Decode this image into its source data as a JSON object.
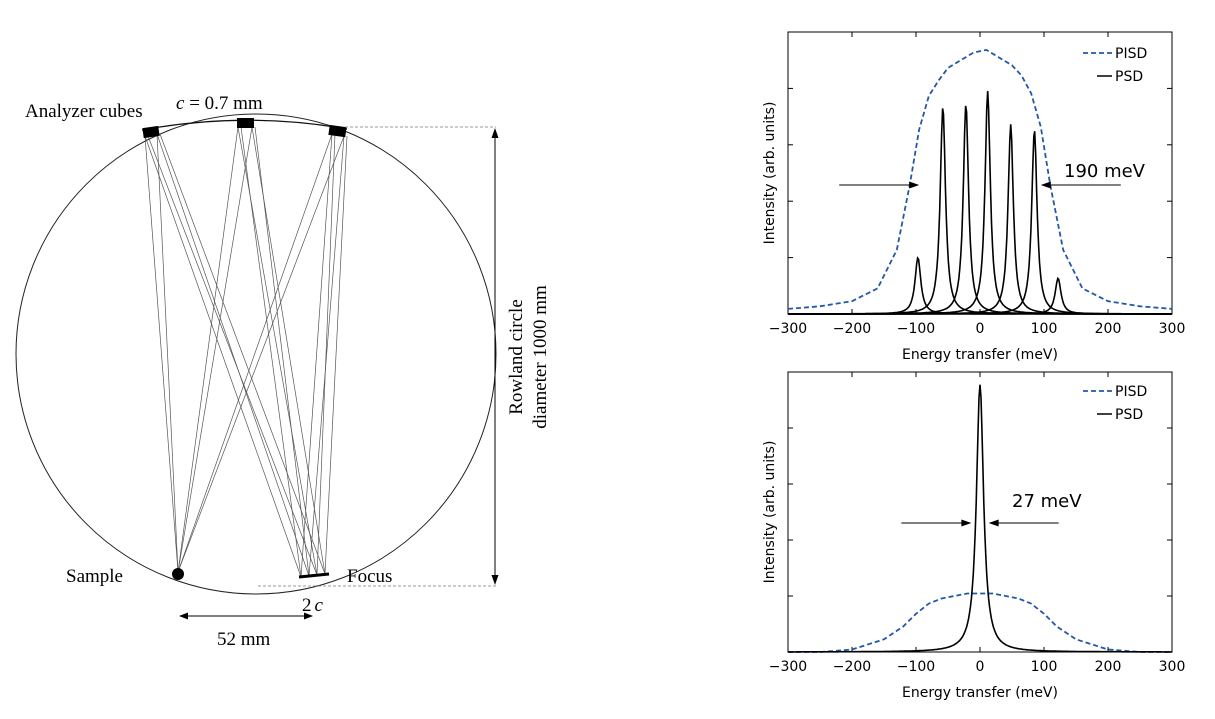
{
  "diagram": {
    "analyzer_label": "Analyzer cubes",
    "c_var": "c",
    "c_value": " = 0.7 mm",
    "sample_label": "Sample",
    "focus_label": "Focus",
    "two": "2",
    "distance_label": "52 mm",
    "rowland_line1": "Rowland circle",
    "rowland_line2": "diameter 1000 mm"
  },
  "chart_data": [
    {
      "type": "line",
      "xlabel": "Energy transfer (meV)",
      "ylabel": "Intensity (arb. units)",
      "xlim": [
        -300,
        300
      ],
      "ylim": [
        0,
        1.1
      ],
      "xticks": [
        -300,
        -200,
        -100,
        0,
        100,
        200,
        300
      ],
      "yticks_shown": false,
      "annotation": "190 meV",
      "fwhm_half": 95,
      "legend": [
        "PISD",
        "PSD"
      ],
      "legend_position": "top-right",
      "series": [
        {
          "name": "PISD",
          "style": "dashed",
          "color": "#2457a8",
          "x": [
            -300,
            -250,
            -200,
            -160,
            -130,
            -110,
            -95,
            -80,
            -65,
            -50,
            -30,
            -10,
            10,
            30,
            50,
            65,
            80,
            95,
            110,
            130,
            160,
            200,
            250,
            300
          ],
          "y": [
            0.02,
            0.03,
            0.05,
            0.1,
            0.25,
            0.5,
            0.72,
            0.85,
            0.91,
            0.96,
            0.99,
            1.02,
            1.03,
            1.0,
            0.97,
            0.93,
            0.86,
            0.73,
            0.5,
            0.25,
            0.1,
            0.05,
            0.03,
            0.02
          ]
        },
        {
          "name": "PSD",
          "style": "solid",
          "color": "#000000",
          "peaks": [
            {
              "center": -97,
              "height": 0.22,
              "width": 11
            },
            {
              "center": -58,
              "height": 0.81,
              "width": 10
            },
            {
              "center": -22,
              "height": 0.82,
              "width": 10
            },
            {
              "center": 12,
              "height": 0.87,
              "width": 10
            },
            {
              "center": 48,
              "height": 0.74,
              "width": 10
            },
            {
              "center": 85,
              "height": 0.72,
              "width": 10
            },
            {
              "center": 122,
              "height": 0.14,
              "width": 11
            }
          ]
        }
      ]
    },
    {
      "type": "line",
      "xlabel": "Energy transfer (meV)",
      "ylabel": "Intensity (arb. units)",
      "xlim": [
        -300,
        300
      ],
      "ylim": [
        0,
        1.1
      ],
      "xticks": [
        -300,
        -200,
        -100,
        0,
        100,
        200,
        300
      ],
      "yticks_shown": false,
      "annotation": "27 meV",
      "fwhm_half": 13.5,
      "legend": [
        "PISD",
        "PSD"
      ],
      "legend_position": "top-right",
      "series": [
        {
          "name": "PISD",
          "style": "dashed",
          "color": "#2457a8",
          "x": [
            -300,
            -250,
            -200,
            -150,
            -120,
            -100,
            -80,
            -60,
            -40,
            -20,
            0,
            20,
            40,
            60,
            80,
            100,
            120,
            150,
            200,
            250,
            300
          ],
          "y": [
            0.0,
            0.0,
            0.01,
            0.05,
            0.1,
            0.15,
            0.19,
            0.21,
            0.22,
            0.23,
            0.23,
            0.23,
            0.22,
            0.21,
            0.19,
            0.15,
            0.1,
            0.05,
            0.01,
            0.0,
            0.0
          ]
        },
        {
          "name": "PSD",
          "style": "solid",
          "color": "#000000",
          "peaks": [
            {
              "center": 0,
              "height": 1.05,
              "width": 13.5
            }
          ]
        }
      ]
    }
  ]
}
